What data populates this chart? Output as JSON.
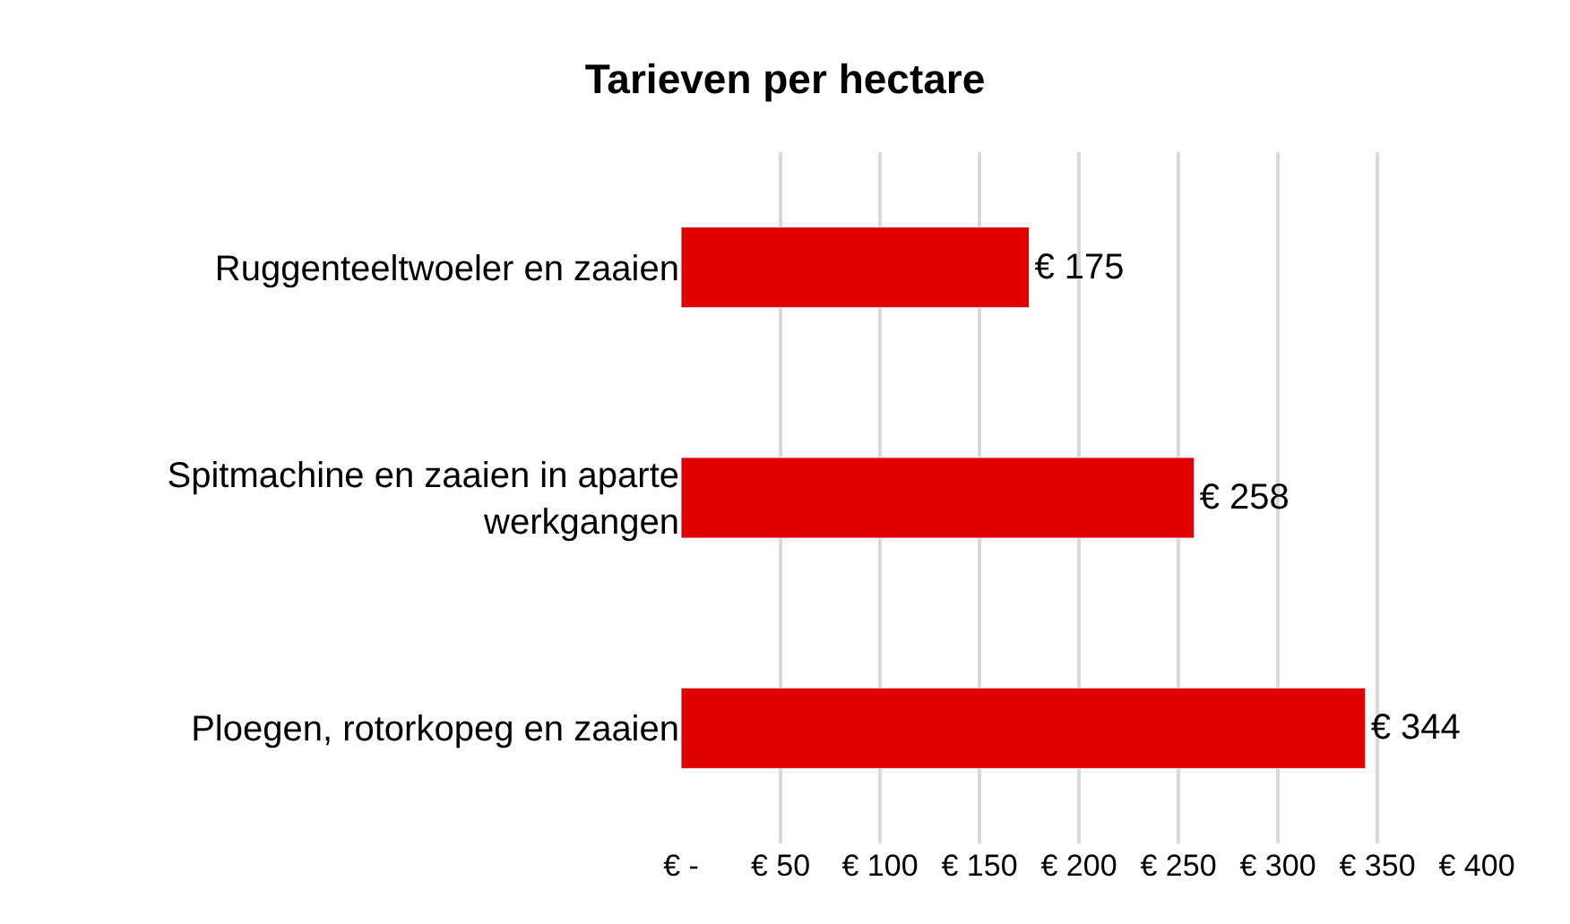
{
  "chart_data": {
    "type": "bar",
    "orientation": "horizontal",
    "title": "Tarieven per hectare",
    "categories": [
      "Ruggenteeltwoeler en zaaien",
      "Spitmachine en zaaien in aparte werkgangen",
      "Ploegen, rotorkopeg en zaaien"
    ],
    "values": [
      175,
      258,
      344
    ],
    "value_labels": [
      "€ 175",
      "€ 258",
      "€ 344"
    ],
    "color": "#e00000",
    "xlim": [
      0,
      400
    ],
    "xticks": [
      {
        "value": 0,
        "label": "€ -"
      },
      {
        "value": 50,
        "label": "€ 50"
      },
      {
        "value": 100,
        "label": "€ 100"
      },
      {
        "value": 150,
        "label": "€ 150"
      },
      {
        "value": 200,
        "label": "€ 200"
      },
      {
        "value": 250,
        "label": "€ 250"
      },
      {
        "value": 300,
        "label": "€ 300"
      },
      {
        "value": 350,
        "label": "€ 350"
      },
      {
        "value": 400,
        "label": "€ 400"
      }
    ],
    "grid": "x",
    "legend": false
  }
}
